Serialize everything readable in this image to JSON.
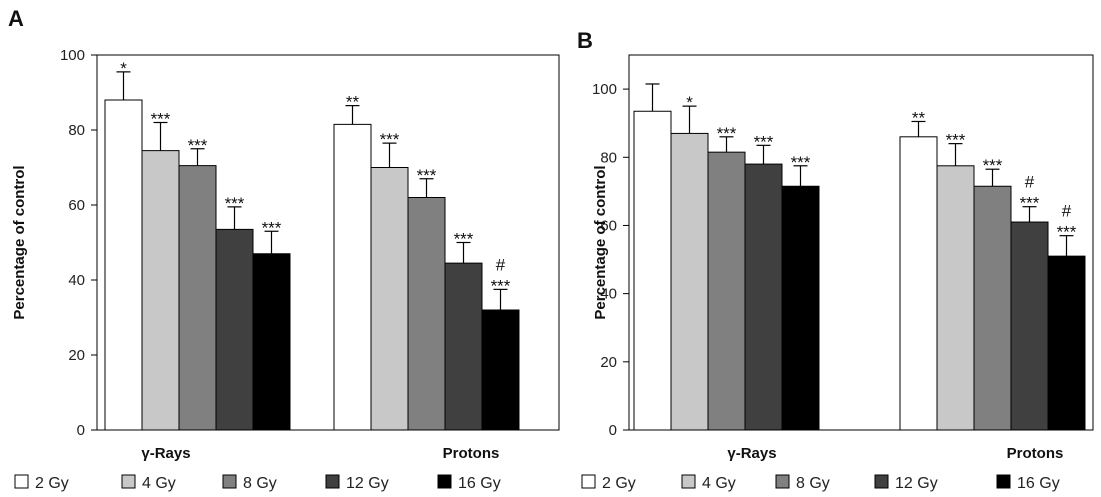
{
  "chart_data": [
    {
      "panel": "A",
      "type": "bar",
      "ylabel": "Percentage of control",
      "ylim": [
        0,
        100
      ],
      "yticks": [
        0,
        20,
        40,
        60,
        80,
        100
      ],
      "groups": [
        "γ-Rays",
        "Protons"
      ],
      "series": [
        {
          "name": "2 Gy",
          "color": "#ffffff",
          "values": [
            88,
            81.5
          ],
          "errors": [
            7.5,
            5
          ],
          "sig": [
            "*",
            "**"
          ]
        },
        {
          "name": "4 Gy",
          "color": "#c8c8c8",
          "values": [
            74.5,
            70
          ],
          "errors": [
            7.5,
            6.5
          ],
          "sig": [
            "***",
            "***"
          ]
        },
        {
          "name": "8 Gy",
          "color": "#808080",
          "values": [
            70.5,
            62
          ],
          "errors": [
            4.5,
            5
          ],
          "sig": [
            "***",
            "***"
          ]
        },
        {
          "name": "12 Gy",
          "color": "#404040",
          "values": [
            53.5,
            44.5
          ],
          "errors": [
            6,
            5.5
          ],
          "sig": [
            "***",
            "***"
          ]
        },
        {
          "name": "16 Gy",
          "color": "#000000",
          "values": [
            47,
            32
          ],
          "errors": [
            6,
            5.5
          ],
          "sig": [
            "***",
            "#\n***"
          ]
        }
      ]
    },
    {
      "panel": "B",
      "type": "bar",
      "ylabel": "Percentage of control",
      "ylim": [
        0,
        110
      ],
      "yticks": [
        0,
        20,
        40,
        60,
        80,
        100
      ],
      "groups": [
        "γ-Rays",
        "Protons"
      ],
      "series": [
        {
          "name": "2 Gy",
          "color": "#ffffff",
          "values": [
            93.5,
            86
          ],
          "errors": [
            8,
            4.5
          ],
          "sig": [
            "",
            "**"
          ]
        },
        {
          "name": "4 Gy",
          "color": "#c8c8c8",
          "values": [
            87,
            77.5
          ],
          "errors": [
            8,
            6.5
          ],
          "sig": [
            "*",
            "***"
          ]
        },
        {
          "name": "8 Gy",
          "color": "#808080",
          "values": [
            81.5,
            71.5
          ],
          "errors": [
            4.5,
            5
          ],
          "sig": [
            "***",
            "***"
          ]
        },
        {
          "name": "12 Gy",
          "color": "#404040",
          "values": [
            78,
            61
          ],
          "errors": [
            5.5,
            4.5
          ],
          "sig": [
            "***",
            "#\n***"
          ]
        },
        {
          "name": "16 Gy",
          "color": "#000000",
          "values": [
            71.5,
            51
          ],
          "errors": [
            6,
            6
          ],
          "sig": [
            "***",
            "#\n***"
          ]
        }
      ]
    }
  ]
}
